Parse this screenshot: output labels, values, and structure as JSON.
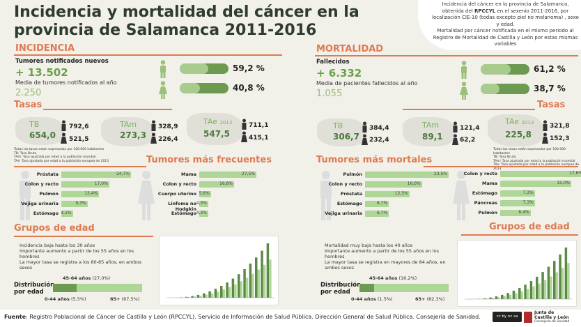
{
  "title": "Incidencia y mortalidad del cáncer en la provincia de Salamanca 2011-2016",
  "note": {
    "line1": "Incidencia del cáncer en la provincia de Salamanca, obtenida del",
    "rpccyl": "RPCCYL",
    "line2": "en el sexenio 2011-2016, por localización CIE-10 (todas excepto piel no melanoma) , sexo y edad.",
    "line3": "Mortalidad por cáncer notificada en el mismo periodo al Registro de Mortalidad de Castilla y León por estas mismas variables"
  },
  "incidencia": {
    "header": "INCIDENCIA",
    "label_total": "Tumores notificados nuevos",
    "total": "+ 13.502",
    "label_media": "Media de tumores notificados al año",
    "media": "2.250",
    "male_pct": "59,2 %",
    "female_pct": "40,8 %",
    "male_frac": 0.592,
    "female_frac": 0.408,
    "tasas_header": "Tasas",
    "tb_label": "TB",
    "tb_value": "654,0",
    "tb_m": "792,6",
    "tb_f": "521,5",
    "tam_label": "TAm",
    "tam_value": "273,3",
    "tam_m": "328,9",
    "tam_f": "226,4",
    "tae_label": "TAe",
    "tae_year": "2013",
    "tae_value": "547,5",
    "tae_m": "711,1",
    "tae_f": "415,1",
    "tasas_note1": "Todas las tasas están expresadas por 100.000 habitantes",
    "tasas_note2": "TB: Tasa Bruta",
    "tasas_note3": "TAm: Tasa ajustada por edad a la población mundial",
    "tasas_note4": "TAe: Tasa ajustada por edad a la población europea de 2013",
    "freq_header": "Tumores más frecuentes",
    "male_tumors": [
      {
        "name": "Próstata",
        "pct": "24,7%",
        "v": 24.7
      },
      {
        "name": "Colon y recto",
        "pct": "17,0%",
        "v": 17.0
      },
      {
        "name": "Pulmón",
        "pct": "13,4%",
        "v": 13.4
      },
      {
        "name": "Vejiga urinaria",
        "pct": "9,3%",
        "v": 9.3
      },
      {
        "name": "Estómago",
        "pct": "4,1%",
        "v": 4.1
      }
    ],
    "female_tumors": [
      {
        "name": "Mama",
        "pct": "27,5%",
        "v": 27.5
      },
      {
        "name": "Colon y recto",
        "pct": "16,8%",
        "v": 16.8
      },
      {
        "name": "Cuerpo uterino",
        "pct": "5,6%",
        "v": 5.6
      },
      {
        "name": "Linfoma no Hodgkin",
        "pct": "4,3%",
        "v": 4.3
      },
      {
        "name": "Estómago",
        "pct": "4,3%",
        "v": 4.3
      }
    ],
    "grupos_header": "Grupos de edad",
    "grupos_items": [
      "Incidencia baja hasta los 30 años",
      "Importante aumento a partir de los 55 años en los hombres",
      "La mayor tasa se registra a los 80-85 años, en ambos sexos"
    ],
    "dist_label": "Distribución por edad",
    "d1": "45-64 años",
    "d1v": "(27,0%)",
    "d2": "0-44 años",
    "d2v": "(5,5%)",
    "d3": "65+",
    "d3v": "(67,5%)",
    "d1f": 0.27,
    "d2f": 0.055,
    "d3f": 0.675
  },
  "mortalidad": {
    "header": "MORTALIDAD",
    "label_total": "Fallecidos",
    "total": "+ 6.332",
    "label_media": "Media de pacientes fallecidos al año",
    "media": "1.055",
    "male_pct": "61,2 %",
    "female_pct": "38,7 %",
    "male_frac": 0.612,
    "female_frac": 0.387,
    "tasas_header": "Tasas",
    "tb_label": "TB",
    "tb_value": "306,7",
    "tb_m": "384,4",
    "tb_f": "232,4",
    "tam_label": "TAm",
    "tam_value": "89,1",
    "tam_m": "121,4",
    "tam_f": "62,2",
    "tae_label": "TAe",
    "tae_year": "2013",
    "tae_value": "225,8",
    "tae_m": "321,8",
    "tae_f": "152,3",
    "tasas_note1": "Todas las tasas están expresadas por 100.000 habitantes",
    "tasas_note2": "TB: Tasa Bruta",
    "tasas_note3": "TAm: Tasa ajustada por edad a la población mundial",
    "tasas_note4": "TAe: Tasa ajustada por edad a la población europea de 2013",
    "freq_header": "Tumores más mortales",
    "male_tumors": [
      {
        "name": "Pulmón",
        "pct": "23,5%",
        "v": 23.5
      },
      {
        "name": "Colon y recto",
        "pct": "16,0%",
        "v": 16.0
      },
      {
        "name": "Próstata",
        "pct": "12,5%",
        "v": 12.5
      },
      {
        "name": "Estómago",
        "pct": "6,7%",
        "v": 6.7
      },
      {
        "name": "Vejiga urinaria",
        "pct": "6,7%",
        "v": 6.7
      }
    ],
    "female_tumors": [
      {
        "name": "Colon y recto",
        "pct": "17,6%",
        "v": 17.6
      },
      {
        "name": "Mama",
        "pct": "15,0%",
        "v": 15.0
      },
      {
        "name": "Estómago",
        "pct": "7,3%",
        "v": 7.3
      },
      {
        "name": "Páncreas",
        "pct": "7,3%",
        "v": 7.3
      },
      {
        "name": "Pulmón",
        "pct": "6,4%",
        "v": 6.4
      }
    ],
    "grupos_header": "Grupos de edad",
    "grupos_items": [
      "Mortalidad muy baja hasta los 40 años",
      "Importante aumento a partir de los 55 años en los hombres",
      "La mayor tasa se registra en mayores de 84 años, en ambos sexos"
    ],
    "dist_label": "Distribución por edad",
    "d1": "45-64 años",
    "d1v": "(16,2%)",
    "d2": "0-44 años",
    "d2v": "(1,5%)",
    "d3": "65+",
    "d3v": "(82,3%)",
    "d1f": 0.162,
    "d2f": 0.015,
    "d3f": 0.823
  },
  "footer": {
    "label": "Fuente",
    "text": ": Registro Poblacional de Cáncer de Castilla y León (RPCCYL). Servicio de Información de Salud Pública. Dirección General de Salud Pública. Consejería de Sanidad.",
    "logo_line1": "Junta de",
    "logo_line2": "Castilla y León",
    "logo_line3": "Consejería de Sanidad",
    "license": "cc by nc sa"
  },
  "colors": {
    "accent": "#e07a50",
    "green": "#6aa04a",
    "light_green": "#aed696",
    "dark_green": "#4a7a3a"
  }
}
